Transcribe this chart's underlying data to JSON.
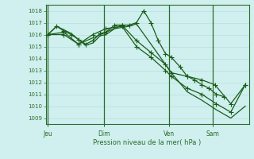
{
  "xlabel": "Pression niveau de la mer( hPa )",
  "bg_color": "#cff0ee",
  "grid_major_color": "#b8dedd",
  "grid_minor_color": "#c8e8e6",
  "line_color": "#1a5c1a",
  "axis_color": "#2d6b2d",
  "tick_color": "#2d6b2d",
  "ylim": [
    1008.5,
    1018.5
  ],
  "yticks": [
    1009,
    1010,
    1011,
    1012,
    1013,
    1014,
    1015,
    1016,
    1017,
    1018
  ],
  "xlim": [
    0,
    28
  ],
  "day_labels": [
    "Jeu",
    "Dim",
    "Ven",
    "Sam"
  ],
  "day_positions": [
    0.3,
    8,
    17,
    23
  ],
  "vline_positions": [
    0.3,
    8,
    17,
    23
  ],
  "lines": [
    {
      "x": [
        0.3,
        1.5,
        2.5,
        3.5,
        4.5,
        5.5,
        6.5,
        7.5,
        8.3,
        9.5,
        10.5,
        11.5,
        12.5,
        13.5,
        14.5,
        15.5,
        16.5,
        17.3,
        18.5,
        19.5,
        20.5,
        21.5,
        22.5,
        23.5,
        24.5
      ],
      "y": [
        1016.0,
        1016.7,
        1016.3,
        1016.0,
        1015.6,
        1015.2,
        1015.5,
        1016.1,
        1016.2,
        1016.8,
        1016.8,
        1016.8,
        1017.0,
        1018.0,
        1017.0,
        1015.5,
        1014.4,
        1014.1,
        1013.3,
        1012.5,
        1012.2,
        1011.8,
        1011.5,
        1011.0,
        1010.8
      ],
      "has_markers": true
    },
    {
      "x": [
        0.3,
        2.5,
        4.5,
        6.5,
        8.3,
        10.5,
        12.5,
        14.5,
        16.5,
        17.3,
        19.5,
        21.5,
        23.5,
        25.5,
        27.5
      ],
      "y": [
        1016.0,
        1016.2,
        1015.2,
        1016.0,
        1016.5,
        1016.7,
        1015.0,
        1014.1,
        1013.0,
        1012.5,
        1011.5,
        1011.0,
        1010.2,
        1009.5,
        1011.8
      ],
      "has_markers": true
    },
    {
      "x": [
        0.3,
        2.5,
        4.5,
        8.3,
        10.5,
        12.5,
        14.5,
        16.5,
        17.3,
        19.5,
        21.5,
        23.3,
        25.5,
        27.5
      ],
      "y": [
        1016.0,
        1016.0,
        1015.2,
        1016.2,
        1016.8,
        1015.5,
        1014.5,
        1013.5,
        1012.8,
        1012.5,
        1012.2,
        1011.8,
        1010.2,
        1011.8
      ],
      "has_markers": true
    },
    {
      "x": [
        0.3,
        1.5,
        2.5,
        3.5,
        4.5,
        5.5,
        6.5,
        7.5,
        8.3,
        9.5,
        10.5,
        11.5,
        12.5,
        14.5,
        16.5,
        17.3,
        19.5,
        21.5,
        23.5,
        25.5,
        26.5,
        27.5
      ],
      "y": [
        1016.0,
        1016.7,
        1016.4,
        1016.1,
        1015.6,
        1015.1,
        1015.3,
        1015.9,
        1016.0,
        1016.5,
        1016.6,
        1016.7,
        1016.9,
        1015.2,
        1013.5,
        1012.8,
        1011.2,
        1010.5,
        1009.7,
        1009.0,
        1009.5,
        1010.0
      ],
      "has_markers": false
    }
  ]
}
